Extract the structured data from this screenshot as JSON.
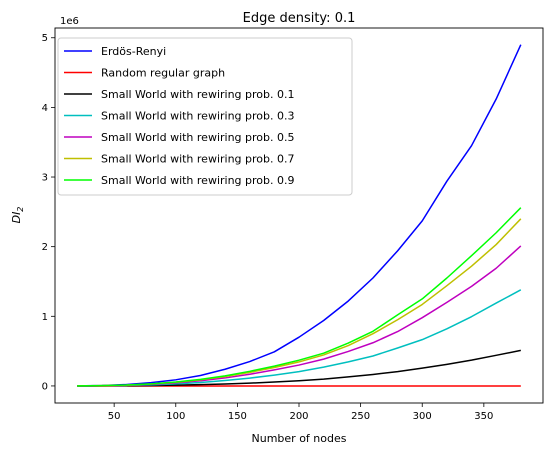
{
  "chart_data": {
    "type": "line",
    "title": "Edge density: 0.1",
    "xlabel": "Number of nodes",
    "ylabel": "DI",
    "ylabel_sub": "2",
    "y_offset_label": "1e6",
    "y_scale": 1000000,
    "xlim": [
      2,
      398
    ],
    "ylim": [
      -0.245,
      5.14
    ],
    "x_ticks": [
      50,
      100,
      150,
      200,
      250,
      300,
      350
    ],
    "y_ticks": [
      0,
      1,
      2,
      3,
      4,
      5
    ],
    "legend_position": "upper-left",
    "x": [
      20,
      40,
      60,
      80,
      100,
      120,
      140,
      160,
      180,
      200,
      220,
      240,
      260,
      280,
      300,
      320,
      340,
      360,
      380
    ],
    "series": [
      {
        "name": "Erdös-Renyi",
        "color": "#0000ff",
        "values": [
          0.001,
          0.006,
          0.021,
          0.047,
          0.088,
          0.15,
          0.24,
          0.35,
          0.49,
          0.7,
          0.94,
          1.22,
          1.55,
          1.94,
          2.37,
          2.94,
          3.45,
          4.12,
          4.9
        ]
      },
      {
        "name": "Random regular graph",
        "color": "#ff0000",
        "values": [
          0,
          0,
          0,
          0,
          0,
          0,
          0,
          0,
          0,
          0,
          0,
          0,
          0,
          0,
          0,
          0,
          0,
          0,
          0
        ]
      },
      {
        "name": "Small World with rewiring prob. 0.1",
        "color": "#000000",
        "values": [
          0.0,
          0.001,
          0.003,
          0.007,
          0.012,
          0.019,
          0.028,
          0.04,
          0.056,
          0.075,
          0.098,
          0.13,
          0.165,
          0.205,
          0.255,
          0.31,
          0.37,
          0.44,
          0.51
        ]
      },
      {
        "name": "Small World with rewiring prob. 0.3",
        "color": "#00bfbf",
        "values": [
          0.0,
          0.002,
          0.007,
          0.016,
          0.03,
          0.05,
          0.078,
          0.113,
          0.155,
          0.205,
          0.27,
          0.345,
          0.43,
          0.545,
          0.665,
          0.82,
          0.995,
          1.19,
          1.38
        ]
      },
      {
        "name": "Small World with rewiring prob. 0.5",
        "color": "#bf00bf",
        "values": [
          0.001,
          0.003,
          0.01,
          0.023,
          0.044,
          0.074,
          0.115,
          0.168,
          0.23,
          0.3,
          0.385,
          0.495,
          0.62,
          0.78,
          0.98,
          1.2,
          1.43,
          1.69,
          2.01
        ]
      },
      {
        "name": "Small World with rewiring prob. 0.7",
        "color": "#bfbf00",
        "values": [
          0.001,
          0.004,
          0.012,
          0.028,
          0.053,
          0.088,
          0.135,
          0.195,
          0.265,
          0.345,
          0.445,
          0.58,
          0.75,
          0.95,
          1.17,
          1.44,
          1.72,
          2.03,
          2.4
        ]
      },
      {
        "name": "Small World with rewiring prob. 0.9",
        "color": "#00ff00",
        "values": [
          0.001,
          0.004,
          0.013,
          0.03,
          0.057,
          0.095,
          0.145,
          0.21,
          0.285,
          0.37,
          0.47,
          0.615,
          0.785,
          1.02,
          1.25,
          1.55,
          1.87,
          2.2,
          2.56
        ]
      }
    ]
  }
}
